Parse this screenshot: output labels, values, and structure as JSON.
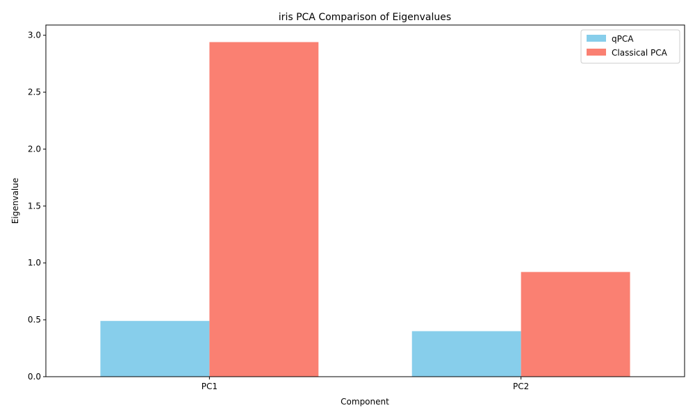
{
  "chart_data": {
    "type": "bar",
    "title": "iris PCA Comparison of Eigenvalues",
    "xlabel": "Component",
    "ylabel": "Eigenvalue",
    "categories": [
      "PC1",
      "PC2"
    ],
    "series": [
      {
        "name": "qPCA",
        "values": [
          0.49,
          0.4
        ],
        "color": "#87ceeb"
      },
      {
        "name": "Classical PCA",
        "values": [
          2.94,
          0.92
        ],
        "color": "#fa8072"
      }
    ],
    "ylim": [
      0,
      3.09
    ],
    "yticks": [
      0.0,
      0.5,
      1.0,
      1.5,
      2.0,
      2.5,
      3.0
    ],
    "ytick_labels": [
      "0.0",
      "0.5",
      "1.0",
      "1.5",
      "2.0",
      "2.5",
      "3.0"
    ],
    "grid": false,
    "legend_position": "top-right"
  }
}
